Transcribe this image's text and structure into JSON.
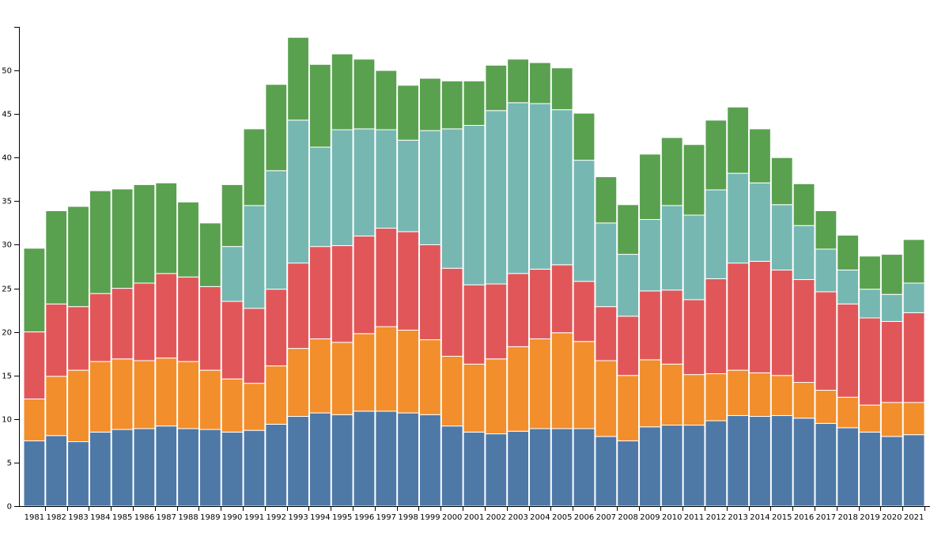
{
  "chart_data": {
    "type": "bar",
    "stacked": true,
    "categories": [
      "1981",
      "1982",
      "1983",
      "1984",
      "1985",
      "1986",
      "1987",
      "1988",
      "1989",
      "1990",
      "1991",
      "1992",
      "1993",
      "1994",
      "1995",
      "1996",
      "1997",
      "1998",
      "1999",
      "2000",
      "2001",
      "2002",
      "2003",
      "2004",
      "2005",
      "2006",
      "2007",
      "2008",
      "2009",
      "2010",
      "2011",
      "2012",
      "2013",
      "2014",
      "2015",
      "2016",
      "2017",
      "2018",
      "2019",
      "2020",
      "2021"
    ],
    "ylim": [
      0,
      55
    ],
    "yticks": [
      0,
      5,
      10,
      15,
      20,
      25,
      30,
      35,
      40,
      45,
      50
    ],
    "grid": false,
    "series": [
      {
        "color": "#4e79a7",
        "values": [
          7.5,
          8.1,
          7.4,
          8.5,
          8.8,
          8.9,
          9.2,
          8.9,
          8.8,
          8.5,
          8.7,
          9.4,
          10.3,
          10.7,
          10.5,
          10.9,
          10.9,
          10.7,
          10.5,
          9.2,
          8.5,
          8.3,
          8.6,
          8.9,
          8.9,
          8.9,
          8.0,
          7.5,
          9.1,
          9.3,
          9.3,
          9.8,
          10.4,
          10.3,
          10.4,
          10.1,
          9.5,
          9.0,
          8.5,
          8.0,
          8.2
        ]
      },
      {
        "color": "#f28e2b",
        "values": [
          4.8,
          6.8,
          8.2,
          8.1,
          8.1,
          7.8,
          7.8,
          7.7,
          6.8,
          6.1,
          5.4,
          6.7,
          7.8,
          8.5,
          8.3,
          8.9,
          9.7,
          9.5,
          8.6,
          8.0,
          7.8,
          8.6,
          9.7,
          10.3,
          11.0,
          10.0,
          8.7,
          7.5,
          7.7,
          7.0,
          5.8,
          5.4,
          5.2,
          5.0,
          4.6,
          4.1,
          3.8,
          3.5,
          3.1,
          3.9,
          3.7
        ]
      },
      {
        "color": "#e15759",
        "values": [
          7.7,
          8.3,
          7.3,
          7.8,
          8.1,
          8.9,
          9.7,
          9.7,
          9.6,
          8.9,
          8.6,
          8.8,
          9.8,
          10.6,
          11.1,
          11.2,
          11.3,
          11.3,
          10.9,
          10.1,
          9.1,
          8.6,
          8.4,
          8.0,
          7.8,
          6.9,
          6.2,
          6.8,
          7.9,
          8.5,
          8.6,
          10.9,
          12.3,
          12.8,
          12.1,
          11.8,
          11.3,
          10.7,
          10.0,
          9.3,
          10.3
        ]
      },
      {
        "color": "#76b7b2",
        "values": [
          0,
          0,
          0,
          0,
          0,
          0,
          0,
          0,
          0,
          6.3,
          11.8,
          13.6,
          16.4,
          11.4,
          13.3,
          12.3,
          11.3,
          10.5,
          13.1,
          16.0,
          18.3,
          19.9,
          19.6,
          19.0,
          17.8,
          13.9,
          9.6,
          7.1,
          8.2,
          9.7,
          9.7,
          10.2,
          10.3,
          9.0,
          7.5,
          6.2,
          4.9,
          3.9,
          3.3,
          3.1,
          3.4
        ]
      },
      {
        "color": "#59a14f",
        "values": [
          9.6,
          10.7,
          11.5,
          11.8,
          11.4,
          11.3,
          10.4,
          8.6,
          7.3,
          7.1,
          8.8,
          9.9,
          9.5,
          9.5,
          8.7,
          8.0,
          6.8,
          6.3,
          6.0,
          5.5,
          5.1,
          5.2,
          5.0,
          4.7,
          4.8,
          5.4,
          5.3,
          5.7,
          7.5,
          7.8,
          8.1,
          8.0,
          7.6,
          6.2,
          5.4,
          4.8,
          4.4,
          4.0,
          3.8,
          4.6,
          5.0
        ]
      }
    ]
  }
}
